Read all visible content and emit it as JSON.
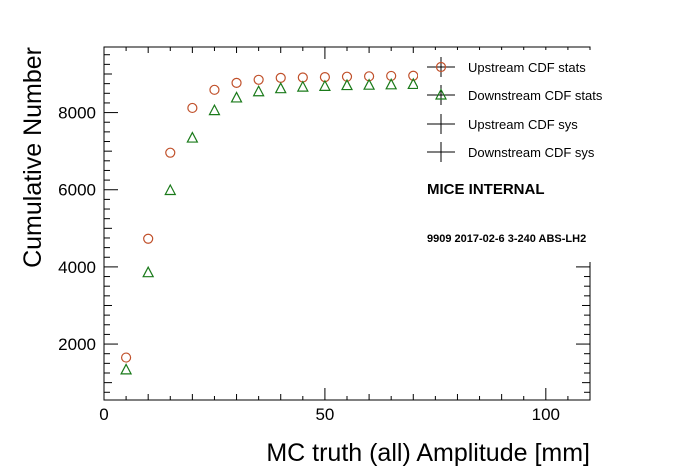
{
  "chart_data": {
    "type": "scatter",
    "title": "",
    "xlabel": "MC truth (all) Amplitude [mm]",
    "ylabel": "Cumulative Number",
    "xlim": [
      0,
      110
    ],
    "ylim": [
      550,
      9700
    ],
    "x_ticks": [
      0,
      50,
      100
    ],
    "y_ticks": [
      2000,
      4000,
      6000,
      8000
    ],
    "grid": false,
    "legend_position": "top-right",
    "series": [
      {
        "name": "Upstream CDF stats",
        "marker": "open-circle",
        "color": "#c0502a",
        "x": [
          5,
          10,
          15,
          20,
          25,
          30,
          35,
          40,
          45,
          50,
          55,
          60,
          65,
          70,
          75,
          80,
          85,
          90,
          95,
          100
        ],
        "y": [
          1650,
          4730,
          6960,
          8120,
          8590,
          8770,
          8850,
          8900,
          8910,
          8920,
          8930,
          8940,
          8950,
          8955,
          8960,
          8960,
          8965,
          8965,
          8965,
          8970
        ]
      },
      {
        "name": "Downstream CDF stats",
        "marker": "open-triangle",
        "color": "#1a7a1a",
        "x": [
          5,
          10,
          15,
          20,
          25,
          30,
          35,
          40,
          45,
          50,
          55,
          60,
          65,
          70,
          75,
          80,
          85,
          90,
          95,
          100
        ],
        "y": [
          1330,
          3850,
          5980,
          7340,
          8050,
          8380,
          8540,
          8620,
          8660,
          8680,
          8700,
          8710,
          8720,
          8730,
          8735,
          8740,
          8740,
          8745,
          8745,
          8750
        ]
      },
      {
        "name": "Upstream CDF sys",
        "marker": "cross",
        "color": "#000000",
        "x": [],
        "y": []
      },
      {
        "name": "Downstream CDF sys",
        "marker": "cross",
        "color": "#000000",
        "x": [],
        "y": []
      }
    ],
    "annotations": {
      "internal": "MICE INTERNAL",
      "run_info": "9909 2017-02-6 3-240 ABS-LH2"
    }
  }
}
